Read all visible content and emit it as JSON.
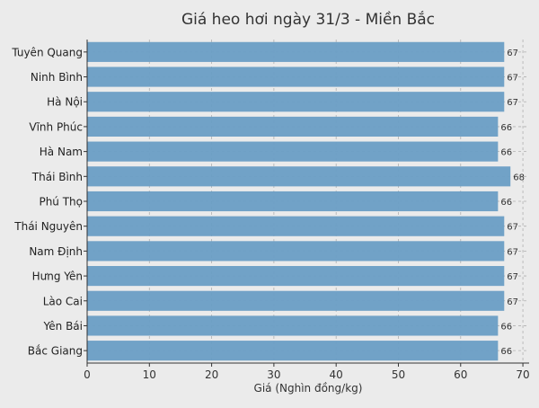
{
  "chart_data": {
    "type": "bar",
    "orientation": "horizontal",
    "title": "Giá heo hơi ngày 31/3 - Miền Bắc",
    "xlabel": "Giá (Nghìn đồng/kg)",
    "ylabel": "",
    "xlim": [
      0,
      71
    ],
    "xticks": [
      0,
      10,
      20,
      30,
      40,
      50,
      60,
      70
    ],
    "grid": true,
    "bar_color": "#6a9ec5",
    "categories": [
      "Tuyên Quang",
      "Ninh Bình",
      "Hà Nội",
      "Vĩnh Phúc",
      "Hà Nam",
      "Thái Bình",
      "Phú Thọ",
      "Thái Nguyên",
      "Nam Định",
      "Hưng Yên",
      "Lào Cai",
      "Yên Bái",
      "Bắc Giang"
    ],
    "values": [
      67,
      67,
      67,
      66,
      66,
      68,
      66,
      67,
      67,
      67,
      67,
      66,
      66
    ]
  }
}
